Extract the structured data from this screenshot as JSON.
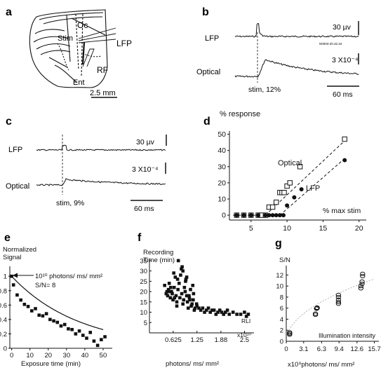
{
  "panel_labels": {
    "a": "a",
    "b": "b",
    "c": "c",
    "d": "d",
    "e": "e",
    "f": "f",
    "g": "g"
  },
  "panel_a": {
    "labels": {
      "oc": "Oc",
      "stim": "Stim",
      "lfp": "LFP",
      "rf": "RF",
      "ent": "Ent"
    },
    "scale_bar": "2.5 mm"
  },
  "panel_b": {
    "trace_labels": {
      "lfp": "LFP",
      "optical": "Optical"
    },
    "scale_v": "30 µv",
    "scale_opt": "3 X10⁻⁴",
    "scale_t": "60 ms",
    "stim": "stim, 12%",
    "tiny": "N0003-20.32.34"
  },
  "panel_c": {
    "trace_labels": {
      "lfp": "LFP",
      "optical": "Optical"
    },
    "scale_v": "30 µv",
    "scale_opt": "3 X10⁻⁴",
    "scale_t": "60 ms",
    "stim": "stim, 9%"
  },
  "colors": {
    "ink": "#111111",
    "fit_g": "#b0b0b0"
  },
  "chart_data": [
    {
      "id": "d",
      "type": "scatter",
      "title": "% response",
      "xlabel": "% max stim",
      "ylabel": "% response",
      "xlim": [
        2,
        21
      ],
      "ylim": [
        -3,
        52
      ],
      "xticks": [
        5,
        10,
        15,
        20
      ],
      "yticks": [
        0,
        10,
        20,
        30,
        40,
        50
      ],
      "series": [
        {
          "name": "Optical",
          "marker": "open-square",
          "x": [
            3,
            4,
            5,
            6,
            6.5,
            7,
            7.5,
            8,
            8.5,
            9,
            9.3,
            9.6,
            10,
            10.4,
            11.8,
            18
          ],
          "y": [
            0,
            0,
            0,
            0,
            0,
            0,
            5,
            5,
            8,
            14,
            14,
            14,
            18,
            20,
            30,
            47
          ]
        },
        {
          "name": "LFP",
          "marker": "filled-circle",
          "x": [
            3,
            4,
            5,
            6,
            7,
            7.5,
            8,
            8.5,
            9,
            9.5,
            10,
            11,
            12,
            18
          ],
          "y": [
            0,
            0,
            0,
            0,
            0,
            0,
            0,
            0,
            0,
            0,
            6,
            11,
            16,
            34
          ]
        }
      ],
      "fits": [
        {
          "x": [
            7,
            18
          ],
          "y": [
            0,
            46
          ]
        },
        {
          "x": [
            9,
            18
          ],
          "y": [
            0,
            35
          ]
        }
      ],
      "baseline": {
        "x": [
          2.5,
          10
        ],
        "y": [
          0,
          0
        ]
      }
    },
    {
      "id": "e",
      "type": "scatter",
      "ylabel": "Normalized Signal",
      "xlabel": "Exposure time (min)",
      "xlim": [
        -1,
        55
      ],
      "ylim": [
        0,
        1.08
      ],
      "xticks": [
        0,
        10,
        20,
        30,
        40,
        50
      ],
      "yticks": [
        0,
        0.2,
        0.4,
        0.6,
        0.8,
        1
      ],
      "annotation": "10¹⁰ photons/ ms/ mm²",
      "annotation2": "S/N= 8",
      "series": [
        {
          "name": "",
          "marker": "filled-square",
          "x": [
            0,
            1,
            3,
            5,
            7,
            9,
            11,
            13,
            15,
            17,
            19,
            21,
            23,
            25,
            27,
            29,
            31,
            33,
            35,
            37,
            39,
            41,
            43,
            45,
            47,
            49,
            51
          ],
          "y": [
            1.0,
            0.88,
            0.74,
            0.67,
            0.61,
            0.58,
            0.52,
            0.55,
            0.46,
            0.45,
            0.48,
            0.4,
            0.38,
            0.36,
            0.31,
            0.33,
            0.27,
            0.26,
            0.2,
            0.24,
            0.18,
            0.14,
            0.22,
            0.1,
            0.04,
            0.12,
            0.16
          ]
        }
      ],
      "fit": {
        "type": "exp",
        "a": 1.0,
        "k": 0.027,
        "x0": 0,
        "x1": 50
      }
    },
    {
      "id": "f",
      "type": "scatter",
      "ylabel": "Recording Time (min)",
      "xlabel": "photons/ ms/ mm²",
      "xlim": [
        0,
        2.75
      ],
      "ylim": [
        0,
        36
      ],
      "xticks": [
        0.625,
        1.25,
        1.88,
        2.5
      ],
      "xtick_labels": [
        "0.625",
        "1.25",
        "1.88",
        "2.5"
      ],
      "x_multiplier": "x10¹⁰",
      "yticks": [
        5,
        10,
        15,
        20,
        25,
        30,
        35
      ],
      "ylabel_extra": "RLI",
      "series": [
        {
          "name": "",
          "marker": "filled-square",
          "x": [
            0.4,
            0.44,
            0.48,
            0.5,
            0.52,
            0.55,
            0.58,
            0.6,
            0.62,
            0.65,
            0.68,
            0.7,
            0.72,
            0.75,
            0.78,
            0.8,
            0.82,
            0.85,
            0.88,
            0.9,
            0.92,
            0.95,
            0.98,
            1.0,
            1.02,
            1.05,
            1.08,
            1.1,
            1.12,
            1.15,
            1.18,
            1.2,
            1.25,
            1.3,
            1.35,
            1.4,
            1.45,
            1.5,
            1.55,
            1.6,
            1.65,
            1.7,
            1.75,
            1.8,
            1.85,
            1.9,
            1.95,
            2.0,
            2.05,
            2.1,
            2.2,
            2.3,
            2.4,
            2.5,
            2.55,
            2.6,
            0.46,
            0.56,
            0.66,
            0.74,
            0.84,
            0.94,
            1.04,
            1.14,
            0.54,
            0.76,
            0.88,
            0.98,
            1.06,
            0.64,
            0.72,
            0.86,
            0.96,
            1.16,
            1.24
          ],
          "y": [
            23,
            19,
            18,
            21,
            24,
            17,
            20,
            19,
            16,
            22,
            27,
            18,
            15,
            21,
            24,
            17,
            28,
            19,
            14,
            16,
            22,
            25,
            18,
            15,
            12,
            17,
            21,
            13,
            14,
            16,
            11,
            12,
            13,
            12,
            11,
            12,
            10,
            11,
            12,
            10,
            11,
            11,
            9,
            10,
            11,
            10,
            9,
            10,
            11,
            9,
            10,
            9,
            9,
            10,
            8,
            9,
            20,
            22,
            17,
            26,
            31,
            20,
            18,
            23,
            20,
            35,
            30,
            27,
            16,
            29,
            13,
            32,
            26,
            19,
            14
          ]
        }
      ]
    },
    {
      "id": "g",
      "type": "scatter",
      "ylabel": "S/N",
      "xlabel": "x10⁹photons/ ms/ mm²",
      "xlim": [
        0,
        16.5
      ],
      "ylim": [
        0,
        13.2
      ],
      "xticks": [
        0,
        3.1,
        6.3,
        9.4,
        12.6,
        15.7
      ],
      "yticks": [
        0,
        2,
        4,
        6,
        8,
        10,
        12
      ],
      "annotation": "Illumination intensity",
      "series": [
        {
          "name": "",
          "marker": "open-circle",
          "x": [
            0.6,
            0.6,
            0.6,
            5.2,
            5.2,
            5.4,
            5.5,
            5.5,
            9.3,
            9.3,
            9.3,
            9.3,
            9.3,
            13.3,
            13.3,
            13.5,
            13.5,
            13.6,
            13.6
          ],
          "y": [
            1.2,
            1.4,
            1.6,
            4.8,
            5.0,
            5.9,
            6.0,
            6.1,
            6.8,
            7.1,
            7.5,
            8.0,
            8.4,
            9.6,
            10.0,
            10.4,
            10.8,
            11.8,
            12.2
          ]
        }
      ],
      "fit": {
        "type": "sqrt",
        "a": 2.85,
        "x0": 0.3,
        "x1": 15.7
      }
    }
  ]
}
